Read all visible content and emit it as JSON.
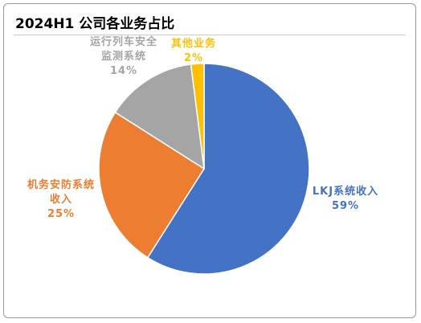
{
  "chart_data": {
    "type": "pie",
    "title": "2024H1 公司各业务占比",
    "categories": [
      "LKJ系统收入",
      "机务安防系统收入",
      "运行列车安全监测系统",
      "其他业务"
    ],
    "values": [
      59,
      25,
      14,
      2
    ],
    "value_labels": [
      "59%",
      "25%",
      "14%",
      "2%"
    ],
    "colors": [
      "#4472c4",
      "#ed7d31",
      "#a5a5a5",
      "#ffc000"
    ]
  }
}
